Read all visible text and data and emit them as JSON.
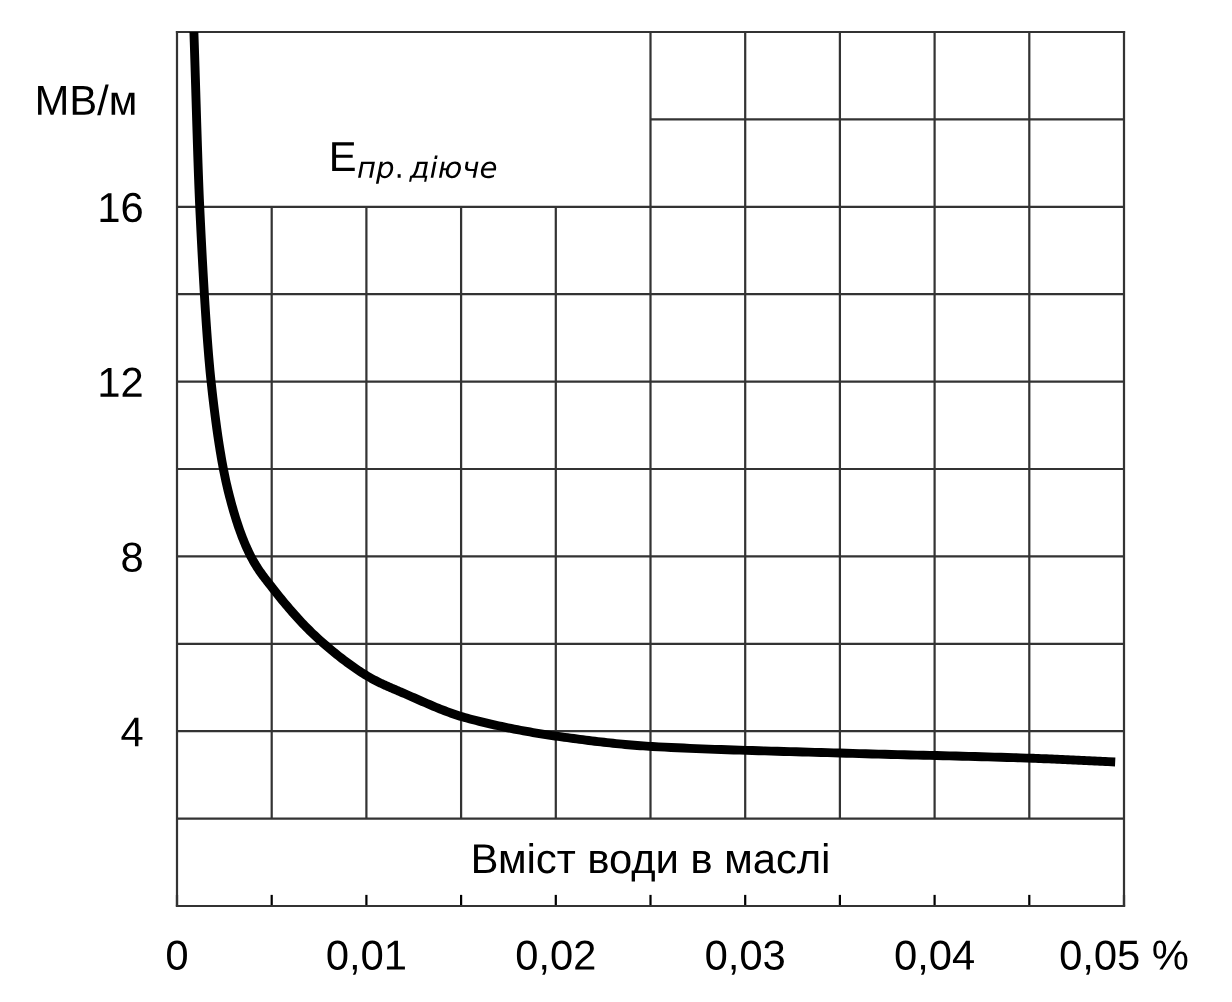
{
  "chart_data": {
    "type": "line",
    "title": "E$_{пр.діюче}$",
    "xlabel": "Вміст води в маслі",
    "ylabel": "МВ/м",
    "x": [
      0.0009,
      0.0012,
      0.0018,
      0.0027,
      0.0039,
      0.005,
      0.0075,
      0.0103,
      0.0118,
      0.0153,
      0.0203,
      0.0251,
      0.035,
      0.0452,
      0.0493
    ],
    "series": [
      {
        "color": "#000000",
        "values": [
          19.9,
          16,
          12,
          9.5,
          8,
          7.3,
          6.1,
          5.2,
          4.9,
          4.3,
          3.87,
          3.65,
          3.5,
          3.38,
          3.3
        ]
      }
    ],
    "xlim": [
      0,
      0.05
    ],
    "ylim": [
      0,
      20
    ],
    "xticks": [
      0,
      {
        "value": 0.005,
        "label": null
      },
      {
        "value": 0.01,
        "label": "0,01"
      },
      {
        "value": 0.015,
        "label": null
      },
      {
        "value": 0.02,
        "label": "0,02"
      },
      {
        "value": 0.025,
        "label": null
      },
      {
        "value": 0.03,
        "label": "0,03"
      },
      {
        "value": 0.035,
        "label": null
      },
      {
        "value": 0.04,
        "label": "0,04"
      },
      {
        "value": 0.045,
        "label": null
      },
      {
        "value": 0.05,
        "label": "0,05 %"
      }
    ],
    "yticks": [
      {
        "value": 2,
        "label": null
      },
      4,
      {
        "value": 6,
        "label": null
      },
      8,
      {
        "value": 10,
        "label": null
      },
      12,
      {
        "value": 14,
        "label": null
      },
      16
    ],
    "ref_lines": [
      {
        "axis": "y",
        "value": 18
      }
    ],
    "grid": true,
    "marker": "none",
    "line_style": "solid"
  }
}
